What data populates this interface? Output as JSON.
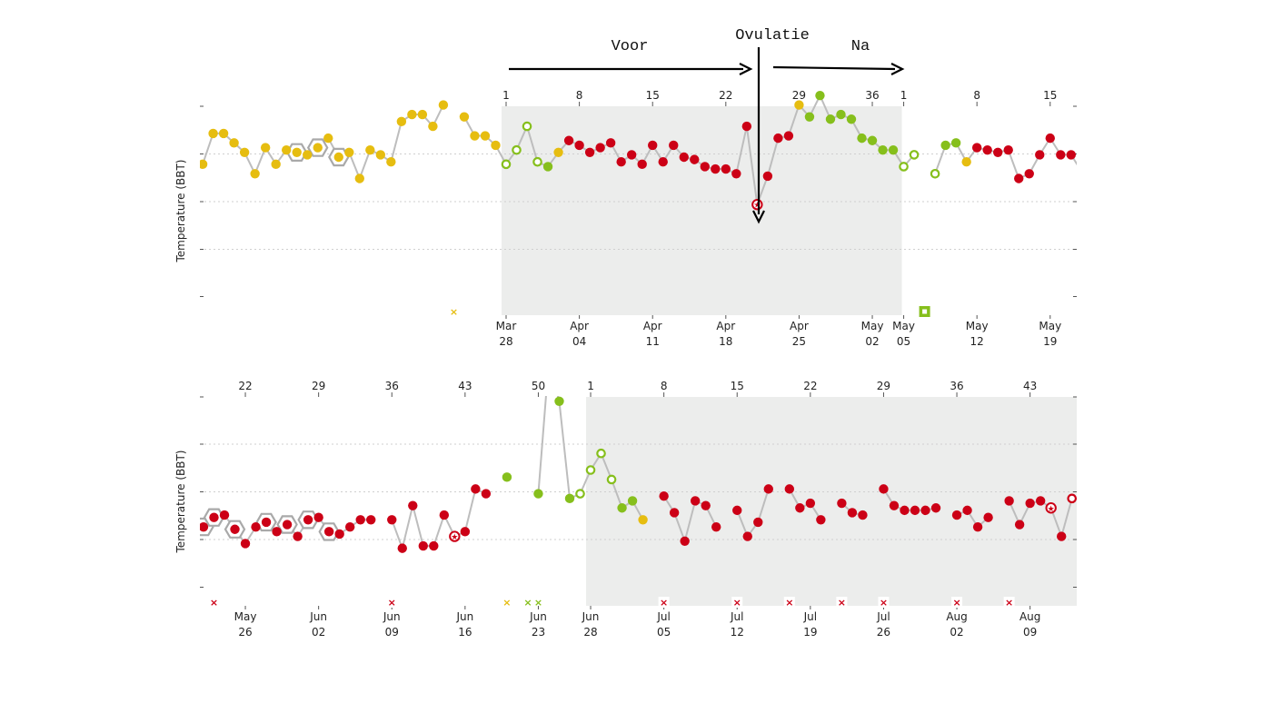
{
  "annotations": {
    "voor": "Voor",
    "ovulatie": "Ovulatie",
    "na": "Na"
  },
  "colors": {
    "yellow": "#e6bd10",
    "red": "#cc0016",
    "green": "#86bf1c",
    "line": "#bdbdbd",
    "shade": "#ecedec"
  },
  "chart_data": [
    {
      "type": "line",
      "panel": "top",
      "ylabel": "Temperature (BBT)",
      "x_unit": "day",
      "grid": true,
      "ylim": [
        0,
        6
      ],
      "cycle_day_ticks": [
        {
          "x": 0,
          "label": "1"
        },
        {
          "x": 7,
          "label": "8"
        },
        {
          "x": 14,
          "label": "15"
        },
        {
          "x": 21,
          "label": "22"
        },
        {
          "x": 28,
          "label": "29"
        },
        {
          "x": 35,
          "label": "36"
        },
        {
          "x": 38,
          "label": "1"
        },
        {
          "x": 45,
          "label": "8"
        },
        {
          "x": 52,
          "label": "15"
        }
      ],
      "date_ticks": [
        {
          "x": 0,
          "month": "Mar",
          "day": "28"
        },
        {
          "x": 7,
          "month": "Apr",
          "day": "04"
        },
        {
          "x": 14,
          "month": "Apr",
          "day": "11"
        },
        {
          "x": 21,
          "month": "Apr",
          "day": "18"
        },
        {
          "x": 28,
          "month": "Apr",
          "day": "25"
        },
        {
          "x": 35,
          "month": "May",
          "day": "02"
        },
        {
          "x": 38,
          "month": "May",
          "day": "05"
        },
        {
          "x": 45,
          "month": "May",
          "day": "12"
        },
        {
          "x": 52,
          "month": "May",
          "day": "19"
        }
      ],
      "shaded_cycle": [
        0,
        38
      ],
      "ovulation_day": 24,
      "series": [
        {
          "x": -29,
          "y": 3.8,
          "c": "yellow"
        },
        {
          "x": -28,
          "y": 4.45,
          "c": "yellow"
        },
        {
          "x": -27,
          "y": 4.45,
          "c": "yellow"
        },
        {
          "x": -26,
          "y": 4.25,
          "c": "yellow"
        },
        {
          "x": -25,
          "y": 4.05,
          "c": "yellow"
        },
        {
          "x": -24,
          "y": 3.6,
          "c": "yellow"
        },
        {
          "x": -23,
          "y": 4.15,
          "c": "yellow"
        },
        {
          "x": -22,
          "y": 3.8,
          "c": "yellow"
        },
        {
          "x": -21,
          "y": 4.1,
          "c": "yellow"
        },
        {
          "x": -20,
          "y": 4.05,
          "c": "yellow",
          "hex": true
        },
        {
          "x": -19,
          "y": 4.0,
          "c": "yellow"
        },
        {
          "x": -18,
          "y": 4.15,
          "c": "yellow",
          "hex": true
        },
        {
          "x": -17,
          "y": 4.35,
          "c": "yellow"
        },
        {
          "x": -16,
          "y": 3.95,
          "c": "yellow",
          "hex": true
        },
        {
          "x": -15,
          "y": 4.05,
          "c": "yellow"
        },
        {
          "x": -14,
          "y": 3.5,
          "c": "yellow"
        },
        {
          "x": -13,
          "y": 4.1,
          "c": "yellow"
        },
        {
          "x": -12,
          "y": 4.0,
          "c": "yellow"
        },
        {
          "x": -11,
          "y": 3.85,
          "c": "yellow"
        },
        {
          "x": -10,
          "y": 4.7,
          "c": "yellow"
        },
        {
          "x": -9,
          "y": 4.85,
          "c": "yellow"
        },
        {
          "x": -8,
          "y": 4.85,
          "c": "yellow"
        },
        {
          "x": -7,
          "y": 4.6,
          "c": "yellow"
        },
        {
          "x": -6,
          "y": 5.05,
          "c": "yellow"
        },
        {
          "x": -4,
          "y": 4.8,
          "c": "yellow"
        },
        {
          "x": -3,
          "y": 4.4,
          "c": "yellow"
        },
        {
          "x": -2,
          "y": 4.4,
          "c": "yellow"
        },
        {
          "x": -1,
          "y": 4.2,
          "c": "yellow"
        },
        {
          "x": 0,
          "y": 3.8,
          "c": "green",
          "open": true
        },
        {
          "x": 1,
          "y": 4.1,
          "c": "green",
          "open": true
        },
        {
          "x": 2,
          "y": 4.6,
          "c": "green",
          "open": true
        },
        {
          "x": 3,
          "y": 3.85,
          "c": "green",
          "open": true
        },
        {
          "x": 4,
          "y": 3.75,
          "c": "green"
        },
        {
          "x": 5,
          "y": 4.05,
          "c": "yellow"
        },
        {
          "x": 6,
          "y": 4.3,
          "c": "red"
        },
        {
          "x": 7,
          "y": 4.2,
          "c": "red"
        },
        {
          "x": 8,
          "y": 4.05,
          "c": "red"
        },
        {
          "x": 9,
          "y": 4.15,
          "c": "red"
        },
        {
          "x": 10,
          "y": 4.25,
          "c": "red"
        },
        {
          "x": 11,
          "y": 3.85,
          "c": "red"
        },
        {
          "x": 12,
          "y": 4.0,
          "c": "red"
        },
        {
          "x": 13,
          "y": 3.8,
          "c": "red"
        },
        {
          "x": 14,
          "y": 4.2,
          "c": "red"
        },
        {
          "x": 15,
          "y": 3.85,
          "c": "red"
        },
        {
          "x": 16,
          "y": 4.2,
          "c": "red"
        },
        {
          "x": 17,
          "y": 3.95,
          "c": "red"
        },
        {
          "x": 18,
          "y": 3.9,
          "c": "red"
        },
        {
          "x": 19,
          "y": 3.75,
          "c": "red"
        },
        {
          "x": 20,
          "y": 3.7,
          "c": "red"
        },
        {
          "x": 21,
          "y": 3.7,
          "c": "red"
        },
        {
          "x": 22,
          "y": 3.6,
          "c": "red"
        },
        {
          "x": 23,
          "y": 4.6,
          "c": "red"
        },
        {
          "x": 24,
          "y": 2.95,
          "c": "red",
          "ov": true
        },
        {
          "x": 25,
          "y": 3.55,
          "c": "red"
        },
        {
          "x": 26,
          "y": 4.35,
          "c": "red"
        },
        {
          "x": 27,
          "y": 4.4,
          "c": "red"
        },
        {
          "x": 28,
          "y": 5.05,
          "c": "yellow"
        },
        {
          "x": 29,
          "y": 4.8,
          "c": "green"
        },
        {
          "x": 30,
          "y": 5.25,
          "c": "green"
        },
        {
          "x": 31,
          "y": 4.75,
          "c": "green"
        },
        {
          "x": 32,
          "y": 4.85,
          "c": "green"
        },
        {
          "x": 33,
          "y": 4.75,
          "c": "green"
        },
        {
          "x": 34,
          "y": 4.35,
          "c": "green"
        },
        {
          "x": 35,
          "y": 4.3,
          "c": "green"
        },
        {
          "x": 36,
          "y": 4.1,
          "c": "green"
        },
        {
          "x": 37,
          "y": 4.1,
          "c": "green"
        },
        {
          "x": 38,
          "y": 3.75,
          "c": "green",
          "open": true
        },
        {
          "x": 39,
          "y": 4.0,
          "c": "green",
          "open": true
        },
        {
          "x": 41,
          "y": 3.6,
          "c": "green",
          "open": true
        },
        {
          "x": 42,
          "y": 4.2,
          "c": "green"
        },
        {
          "x": 43,
          "y": 4.25,
          "c": "green"
        },
        {
          "x": 44,
          "y": 3.85,
          "c": "yellow"
        },
        {
          "x": 45,
          "y": 4.15,
          "c": "red"
        },
        {
          "x": 46,
          "y": 4.1,
          "c": "red"
        },
        {
          "x": 47,
          "y": 4.05,
          "c": "red"
        },
        {
          "x": 48,
          "y": 4.1,
          "c": "red"
        },
        {
          "x": 49,
          "y": 3.5,
          "c": "red"
        },
        {
          "x": 50,
          "y": 3.6,
          "c": "red"
        },
        {
          "x": 51,
          "y": 4.0,
          "c": "red"
        },
        {
          "x": 52,
          "y": 4.35,
          "c": "red"
        },
        {
          "x": 53,
          "y": 4.0,
          "c": "red"
        },
        {
          "x": 54,
          "y": 4.0,
          "c": "red"
        },
        {
          "x": 55,
          "y": 3.65,
          "c": "red",
          "open": true
        }
      ],
      "markers": [
        {
          "x": -5,
          "kind": "x",
          "c": "yellow"
        },
        {
          "x": 40,
          "kind": "square",
          "c": "green"
        }
      ]
    },
    {
      "type": "line",
      "panel": "bottom",
      "ylabel": "Temperature (BBT)",
      "x_unit": "day",
      "grid": true,
      "ylim": [
        0,
        6
      ],
      "cycle_day_ticks": [
        {
          "x": -31,
          "label": "22"
        },
        {
          "x": -24,
          "label": "29"
        },
        {
          "x": -17,
          "label": "36"
        },
        {
          "x": -10,
          "label": "43"
        },
        {
          "x": -3,
          "label": "50"
        },
        {
          "x": 2,
          "label": "1"
        },
        {
          "x": 9,
          "label": "8"
        },
        {
          "x": 16,
          "label": "15"
        },
        {
          "x": 23,
          "label": "22"
        },
        {
          "x": 30,
          "label": "29"
        },
        {
          "x": 37,
          "label": "36"
        },
        {
          "x": 44,
          "label": "43"
        }
      ],
      "date_ticks": [
        {
          "x": -31,
          "month": "May",
          "day": "26"
        },
        {
          "x": -24,
          "month": "Jun",
          "day": "02"
        },
        {
          "x": -17,
          "month": "Jun",
          "day": "09"
        },
        {
          "x": -10,
          "month": "Jun",
          "day": "16"
        },
        {
          "x": -3,
          "month": "Jun",
          "day": "23"
        },
        {
          "x": 2,
          "month": "Jun",
          "day": "28"
        },
        {
          "x": 9,
          "month": "Jul",
          "day": "05"
        },
        {
          "x": 16,
          "month": "Jul",
          "day": "12"
        },
        {
          "x": 23,
          "month": "Jul",
          "day": "19"
        },
        {
          "x": 30,
          "month": "Jul",
          "day": "26"
        },
        {
          "x": 37,
          "month": "Aug",
          "day": "02"
        },
        {
          "x": 44,
          "month": "Aug",
          "day": "09"
        }
      ],
      "shaded_cycle": [
        2,
        49
      ],
      "series": [
        {
          "x": -35,
          "y": 3.3,
          "c": "red",
          "hex": true
        },
        {
          "x": -34,
          "y": 3.5,
          "c": "red",
          "hex": true
        },
        {
          "x": -33,
          "y": 3.55,
          "c": "red"
        },
        {
          "x": -32,
          "y": 3.25,
          "c": "red",
          "hex": true
        },
        {
          "x": -31,
          "y": 2.95,
          "c": "red"
        },
        {
          "x": -30,
          "y": 3.3,
          "c": "red"
        },
        {
          "x": -29,
          "y": 3.4,
          "c": "red",
          "hex": true
        },
        {
          "x": -28,
          "y": 3.2,
          "c": "red"
        },
        {
          "x": -27,
          "y": 3.35,
          "c": "red",
          "hex": true
        },
        {
          "x": -26,
          "y": 3.1,
          "c": "red"
        },
        {
          "x": -25,
          "y": 3.45,
          "c": "red",
          "hex": true
        },
        {
          "x": -24,
          "y": 3.5,
          "c": "red"
        },
        {
          "x": -23,
          "y": 3.2,
          "c": "red",
          "hex": true
        },
        {
          "x": -22,
          "y": 3.15,
          "c": "red"
        },
        {
          "x": -21,
          "y": 3.3,
          "c": "red"
        },
        {
          "x": -20,
          "y": 3.45,
          "c": "red"
        },
        {
          "x": -19,
          "y": 3.45,
          "c": "red"
        },
        {
          "x": -17,
          "y": 3.45,
          "c": "red"
        },
        {
          "x": -16,
          "y": 2.85,
          "c": "red"
        },
        {
          "x": -15,
          "y": 3.75,
          "c": "red"
        },
        {
          "x": -14,
          "y": 2.9,
          "c": "red"
        },
        {
          "x": -13,
          "y": 2.9,
          "c": "red"
        },
        {
          "x": -12,
          "y": 3.55,
          "c": "red"
        },
        {
          "x": -11,
          "y": 3.1,
          "c": "red",
          "ov": true
        },
        {
          "x": -10,
          "y": 3.2,
          "c": "red"
        },
        {
          "x": -9,
          "y": 4.1,
          "c": "red"
        },
        {
          "x": -8,
          "y": 4.0,
          "c": "red"
        },
        {
          "x": -6,
          "y": 4.35,
          "c": "green"
        },
        {
          "x": -3,
          "y": 4.0,
          "c": "green"
        },
        {
          "x": -2,
          "y": 6.8,
          "c": "green",
          "offchart": true
        },
        {
          "x": -1,
          "y": 5.95,
          "c": "green"
        },
        {
          "x": 0,
          "y": 3.9,
          "c": "green"
        },
        {
          "x": 1,
          "y": 4.0,
          "c": "green",
          "open": true
        },
        {
          "x": 2,
          "y": 4.5,
          "c": "green",
          "open": true
        },
        {
          "x": 3,
          "y": 4.85,
          "c": "green",
          "open": true
        },
        {
          "x": 4,
          "y": 4.3,
          "c": "green",
          "open": true
        },
        {
          "x": 5,
          "y": 3.7,
          "c": "green"
        },
        {
          "x": 6,
          "y": 3.85,
          "c": "green"
        },
        {
          "x": 7,
          "y": 3.45,
          "c": "yellow"
        },
        {
          "x": 9,
          "y": 3.95,
          "c": "red"
        },
        {
          "x": 10,
          "y": 3.6,
          "c": "red"
        },
        {
          "x": 11,
          "y": 3.0,
          "c": "red"
        },
        {
          "x": 12,
          "y": 3.85,
          "c": "red"
        },
        {
          "x": 13,
          "y": 3.75,
          "c": "red"
        },
        {
          "x": 14,
          "y": 3.3,
          "c": "red"
        },
        {
          "x": 16,
          "y": 3.65,
          "c": "red"
        },
        {
          "x": 17,
          "y": 3.1,
          "c": "red"
        },
        {
          "x": 18,
          "y": 3.4,
          "c": "red"
        },
        {
          "x": 19,
          "y": 4.1,
          "c": "red"
        },
        {
          "x": 21,
          "y": 4.1,
          "c": "red"
        },
        {
          "x": 22,
          "y": 3.7,
          "c": "red"
        },
        {
          "x": 23,
          "y": 3.8,
          "c": "red"
        },
        {
          "x": 24,
          "y": 3.45,
          "c": "red"
        },
        {
          "x": 26,
          "y": 3.8,
          "c": "red"
        },
        {
          "x": 27,
          "y": 3.6,
          "c": "red"
        },
        {
          "x": 28,
          "y": 3.55,
          "c": "red"
        },
        {
          "x": 30,
          "y": 4.1,
          "c": "red"
        },
        {
          "x": 31,
          "y": 3.75,
          "c": "red"
        },
        {
          "x": 32,
          "y": 3.65,
          "c": "red"
        },
        {
          "x": 33,
          "y": 3.65,
          "c": "red"
        },
        {
          "x": 34,
          "y": 3.65,
          "c": "red"
        },
        {
          "x": 35,
          "y": 3.7,
          "c": "red"
        },
        {
          "x": 37,
          "y": 3.55,
          "c": "red"
        },
        {
          "x": 38,
          "y": 3.65,
          "c": "red"
        },
        {
          "x": 39,
          "y": 3.3,
          "c": "red"
        },
        {
          "x": 40,
          "y": 3.5,
          "c": "red"
        },
        {
          "x": 42,
          "y": 3.85,
          "c": "red"
        },
        {
          "x": 43,
          "y": 3.35,
          "c": "red"
        },
        {
          "x": 44,
          "y": 3.8,
          "c": "red"
        },
        {
          "x": 45,
          "y": 3.85,
          "c": "red"
        },
        {
          "x": 46,
          "y": 3.7,
          "c": "red",
          "ov": true
        },
        {
          "x": 47,
          "y": 3.1,
          "c": "red"
        },
        {
          "x": 48,
          "y": 3.9,
          "c": "red",
          "open": true
        }
      ],
      "markers": [
        {
          "x": -34,
          "kind": "x",
          "c": "red"
        },
        {
          "x": -17,
          "kind": "x",
          "c": "red"
        },
        {
          "x": -6,
          "kind": "x",
          "c": "yellow"
        },
        {
          "x": -4,
          "kind": "x",
          "c": "green"
        },
        {
          "x": -3,
          "kind": "x",
          "c": "green"
        },
        {
          "x": 9,
          "kind": "x",
          "c": "red"
        },
        {
          "x": 16,
          "kind": "x",
          "c": "red"
        },
        {
          "x": 21,
          "kind": "x",
          "c": "red"
        },
        {
          "x": 26,
          "kind": "x",
          "c": "red"
        },
        {
          "x": 30,
          "kind": "x",
          "c": "red"
        },
        {
          "x": 37,
          "kind": "x",
          "c": "red"
        },
        {
          "x": 42,
          "kind": "x",
          "c": "red"
        }
      ]
    }
  ]
}
